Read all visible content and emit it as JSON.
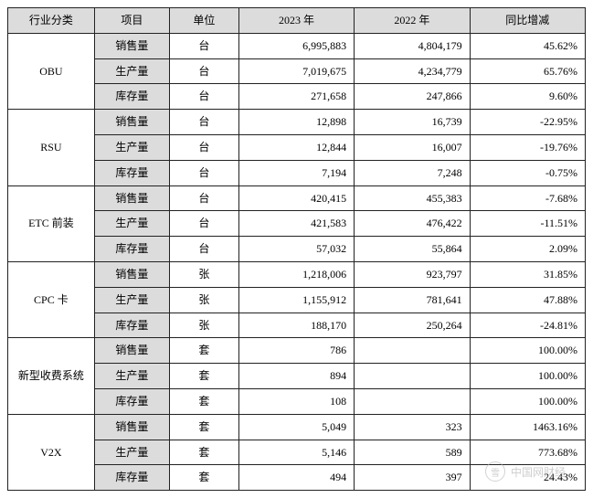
{
  "headers": {
    "category": "行业分类",
    "project": "项目",
    "unit": "单位",
    "y2023": "2023 年",
    "y2022": "2022 年",
    "diff": "同比增减"
  },
  "groups": [
    {
      "name": "OBU",
      "rows": [
        {
          "proj": "销售量",
          "unit": "台",
          "v23": "6,995,883",
          "v22": "4,804,179",
          "diff": "45.62%"
        },
        {
          "proj": "生产量",
          "unit": "台",
          "v23": "7,019,675",
          "v22": "4,234,779",
          "diff": "65.76%"
        },
        {
          "proj": "库存量",
          "unit": "台",
          "v23": "271,658",
          "v22": "247,866",
          "diff": "9.60%"
        }
      ]
    },
    {
      "name": "RSU",
      "rows": [
        {
          "proj": "销售量",
          "unit": "台",
          "v23": "12,898",
          "v22": "16,739",
          "diff": "-22.95%"
        },
        {
          "proj": "生产量",
          "unit": "台",
          "v23": "12,844",
          "v22": "16,007",
          "diff": "-19.76%"
        },
        {
          "proj": "库存量",
          "unit": "台",
          "v23": "7,194",
          "v22": "7,248",
          "diff": "-0.75%"
        }
      ]
    },
    {
      "name": "ETC 前装",
      "rows": [
        {
          "proj": "销售量",
          "unit": "台",
          "v23": "420,415",
          "v22": "455,383",
          "diff": "-7.68%"
        },
        {
          "proj": "生产量",
          "unit": "台",
          "v23": "421,583",
          "v22": "476,422",
          "diff": "-11.51%"
        },
        {
          "proj": "库存量",
          "unit": "台",
          "v23": "57,032",
          "v22": "55,864",
          "diff": "2.09%"
        }
      ]
    },
    {
      "name": "CPC 卡",
      "rows": [
        {
          "proj": "销售量",
          "unit": "张",
          "v23": "1,218,006",
          "v22": "923,797",
          "diff": "31.85%"
        },
        {
          "proj": "生产量",
          "unit": "张",
          "v23": "1,155,912",
          "v22": "781,641",
          "diff": "47.88%"
        },
        {
          "proj": "库存量",
          "unit": "张",
          "v23": "188,170",
          "v22": "250,264",
          "diff": "-24.81%"
        }
      ]
    },
    {
      "name": "新型收费系统",
      "rows": [
        {
          "proj": "销售量",
          "unit": "套",
          "v23": "786",
          "v22": "",
          "diff": "100.00%"
        },
        {
          "proj": "生产量",
          "unit": "套",
          "v23": "894",
          "v22": "",
          "diff": "100.00%"
        },
        {
          "proj": "库存量",
          "unit": "套",
          "v23": "108",
          "v22": "",
          "diff": "100.00%"
        }
      ]
    },
    {
      "name": "V2X",
      "rows": [
        {
          "proj": "销售量",
          "unit": "套",
          "v23": "5,049",
          "v22": "323",
          "diff": "1463.16%"
        },
        {
          "proj": "生产量",
          "unit": "套",
          "v23": "5,146",
          "v22": "589",
          "diff": "773.68%"
        },
        {
          "proj": "库存量",
          "unit": "套",
          "v23": "494",
          "v22": "397",
          "diff": "24.43%"
        }
      ]
    }
  ],
  "watermark": {
    "icon": "雪",
    "text": "中国网财经"
  }
}
